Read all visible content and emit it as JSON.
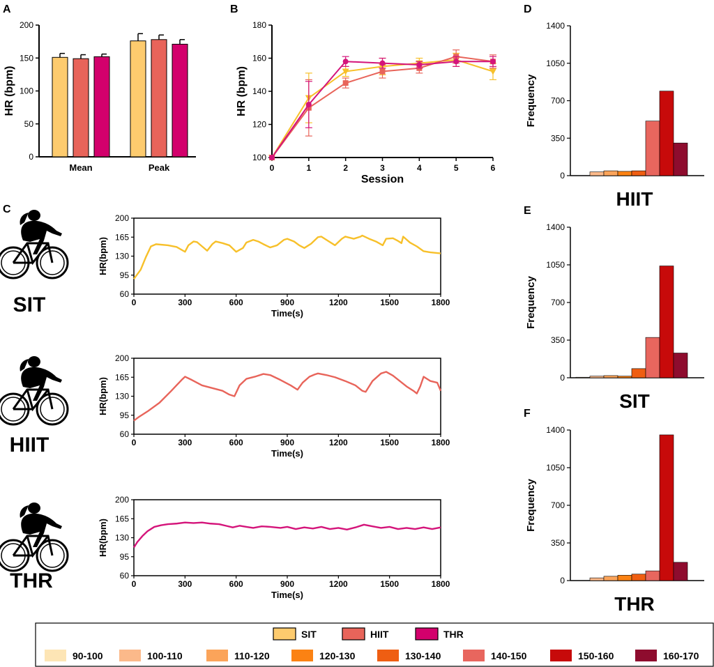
{
  "colors": {
    "sit": "#FDCB6E",
    "hiit": "#E8645A",
    "thr": "#D3006C",
    "sit_line": "#F7C02A",
    "hiit_line": "#E8645A",
    "thr_line": "#D4147A",
    "bins": [
      "#FDE5B5",
      "#FBB98A",
      "#FBA45A",
      "#FB8213",
      "#EF5E12",
      "#E8665E",
      "#C70A0A",
      "#8E0C2E"
    ]
  },
  "panels": {
    "a": "A",
    "b": "B",
    "c": "C",
    "d": "D",
    "e": "E",
    "f": "F"
  },
  "legend": {
    "groups": [
      "SIT",
      "HIIT",
      "THR"
    ],
    "bins": [
      "90-100",
      "100-110",
      "110-120",
      "120-130",
      "130-140",
      "140-150",
      "150-160",
      "160-170"
    ]
  },
  "cyclist_labels": [
    "SIT",
    "HIIT",
    "THR"
  ],
  "cyclist_icon": "cyclist-icon",
  "chart_data": [
    {
      "id": "A",
      "type": "bar",
      "ylabel": "HR (bpm)",
      "xlabel": "",
      "ylim": [
        0,
        200
      ],
      "yticks": [
        0,
        50,
        100,
        150,
        200
      ],
      "categories": [
        "Mean",
        "Peak"
      ],
      "series": [
        {
          "name": "SIT",
          "values": [
            151,
            176
          ],
          "errors": [
            6,
            11
          ]
        },
        {
          "name": "HIIT",
          "values": [
            149,
            178
          ],
          "errors": [
            6,
            7
          ]
        },
        {
          "name": "THR",
          "values": [
            152,
            171
          ],
          "errors": [
            4,
            7
          ]
        }
      ]
    },
    {
      "id": "B",
      "type": "line",
      "xlabel": "Session",
      "ylabel": "HR (bpm)",
      "xlim": [
        0,
        6
      ],
      "ylim": [
        100,
        180
      ],
      "xticks": [
        0,
        1,
        2,
        3,
        4,
        5,
        6
      ],
      "yticks": [
        100,
        120,
        140,
        160,
        180
      ],
      "series": [
        {
          "name": "SIT",
          "marker": "triangle-down",
          "x": [
            0,
            1,
            2,
            3,
            4,
            5,
            6
          ],
          "values": [
            100,
            136,
            152,
            155,
            157,
            159,
            152
          ],
          "errors": [
            0,
            15,
            3,
            5,
            3,
            4,
            5
          ]
        },
        {
          "name": "HIIT",
          "marker": "square",
          "x": [
            0,
            1,
            2,
            3,
            4,
            5,
            6
          ],
          "values": [
            100,
            130,
            145,
            152,
            154,
            161,
            158
          ],
          "errors": [
            0,
            17,
            3,
            4,
            3,
            4,
            4
          ]
        },
        {
          "name": "THR",
          "marker": "circle",
          "x": [
            0,
            1,
            2,
            3,
            4,
            5,
            6
          ],
          "values": [
            100,
            132,
            158,
            157,
            156,
            158,
            158
          ],
          "errors": [
            0,
            14,
            3,
            3,
            2,
            3,
            3
          ]
        }
      ]
    },
    {
      "id": "C-SIT",
      "type": "line",
      "xlabel": "Time(s)",
      "ylabel": "HR(bpm)",
      "xlim": [
        0,
        1800
      ],
      "ylim": [
        60,
        200
      ],
      "xticks": [
        0,
        300,
        600,
        900,
        1200,
        1500,
        1800
      ],
      "yticks": [
        60,
        95,
        130,
        165,
        200
      ],
      "series": [
        {
          "name": "SIT",
          "x": [
            0,
            40,
            70,
            100,
            130,
            200,
            250,
            300,
            320,
            350,
            370,
            400,
            430,
            460,
            480,
            520,
            560,
            600,
            640,
            660,
            700,
            730,
            760,
            800,
            840,
            880,
            900,
            940,
            970,
            1000,
            1040,
            1080,
            1100,
            1140,
            1180,
            1220,
            1240,
            1290,
            1300,
            1330,
            1340,
            1380,
            1420,
            1460,
            1480,
            1520,
            1550,
            1570,
            1580,
            1620,
            1660,
            1700,
            1740,
            1800
          ],
          "values": [
            88,
            105,
            128,
            148,
            152,
            150,
            147,
            138,
            150,
            157,
            156,
            148,
            140,
            152,
            157,
            154,
            150,
            138,
            145,
            155,
            160,
            157,
            152,
            146,
            150,
            160,
            162,
            157,
            150,
            145,
            153,
            165,
            166,
            158,
            150,
            162,
            166,
            162,
            163,
            166,
            168,
            162,
            157,
            150,
            162,
            163,
            158,
            154,
            166,
            155,
            148,
            139,
            137,
            135
          ]
        }
      ]
    },
    {
      "id": "C-HIIT",
      "type": "line",
      "xlabel": "Time(s)",
      "ylabel": "HR(bpm)",
      "xlim": [
        0,
        1800
      ],
      "ylim": [
        60,
        200
      ],
      "xticks": [
        0,
        300,
        600,
        900,
        1200,
        1500,
        1800
      ],
      "yticks": [
        60,
        95,
        130,
        165,
        200
      ],
      "series": [
        {
          "name": "HIIT",
          "x": [
            0,
            30,
            80,
            150,
            220,
            280,
            300,
            340,
            400,
            460,
            520,
            560,
            590,
            620,
            660,
            710,
            760,
            800,
            860,
            920,
            960,
            990,
            1030,
            1060,
            1080,
            1130,
            1180,
            1240,
            1300,
            1340,
            1360,
            1400,
            1450,
            1480,
            1520,
            1560,
            1600,
            1640,
            1660,
            1680,
            1700,
            1740,
            1780,
            1800
          ],
          "values": [
            85,
            92,
            102,
            118,
            140,
            160,
            166,
            160,
            150,
            145,
            140,
            133,
            130,
            150,
            162,
            166,
            171,
            169,
            160,
            150,
            142,
            155,
            166,
            170,
            172,
            169,
            165,
            158,
            150,
            140,
            138,
            158,
            172,
            175,
            168,
            158,
            148,
            140,
            135,
            148,
            166,
            158,
            155,
            140
          ]
        }
      ]
    },
    {
      "id": "C-THR",
      "type": "line",
      "xlabel": "Time(s)",
      "ylabel": "HR(bpm)",
      "xlim": [
        0,
        1800
      ],
      "ylim": [
        60,
        200
      ],
      "xticks": [
        0,
        300,
        600,
        900,
        1200,
        1500,
        1800
      ],
      "yticks": [
        60,
        95,
        130,
        165,
        200
      ],
      "series": [
        {
          "name": "THR",
          "x": [
            0,
            20,
            50,
            80,
            120,
            160,
            200,
            250,
            300,
            350,
            400,
            450,
            500,
            540,
            580,
            620,
            660,
            700,
            750,
            800,
            860,
            900,
            950,
            1000,
            1050,
            1100,
            1150,
            1200,
            1250,
            1300,
            1350,
            1400,
            1450,
            1500,
            1550,
            1600,
            1650,
            1700,
            1750,
            1800
          ],
          "values": [
            112,
            122,
            133,
            142,
            150,
            153,
            155,
            156,
            158,
            157,
            158,
            156,
            155,
            152,
            149,
            152,
            150,
            148,
            151,
            150,
            148,
            150,
            146,
            149,
            147,
            150,
            146,
            148,
            145,
            149,
            154,
            151,
            148,
            150,
            146,
            148,
            146,
            149,
            146,
            149
          ]
        }
      ]
    },
    {
      "id": "D",
      "type": "bar",
      "xlabel": "HIIT",
      "ylabel": "Frequency",
      "ylim": [
        0,
        1400
      ],
      "yticks": [
        0,
        350,
        700,
        1050,
        1400
      ],
      "categories": [
        "90-100",
        "100-110",
        "110-120",
        "120-130",
        "130-140",
        "140-150",
        "150-160",
        "160-170"
      ],
      "values": [
        0,
        35,
        45,
        40,
        45,
        510,
        790,
        305
      ]
    },
    {
      "id": "E",
      "type": "bar",
      "xlabel": "SIT",
      "ylabel": "Frequency",
      "ylim": [
        0,
        1400
      ],
      "yticks": [
        0,
        350,
        700,
        1050,
        1400
      ],
      "categories": [
        "90-100",
        "100-110",
        "110-120",
        "120-130",
        "130-140",
        "140-150",
        "150-160",
        "160-170"
      ],
      "values": [
        5,
        15,
        20,
        15,
        85,
        375,
        1040,
        230
      ]
    },
    {
      "id": "F",
      "type": "bar",
      "xlabel": "THR",
      "ylabel": "Frequency",
      "ylim": [
        0,
        1400
      ],
      "yticks": [
        0,
        350,
        700,
        1050,
        1400
      ],
      "categories": [
        "90-100",
        "100-110",
        "110-120",
        "120-130",
        "130-140",
        "140-150",
        "150-160",
        "160-170"
      ],
      "values": [
        0,
        25,
        40,
        50,
        60,
        90,
        1355,
        170
      ]
    }
  ]
}
